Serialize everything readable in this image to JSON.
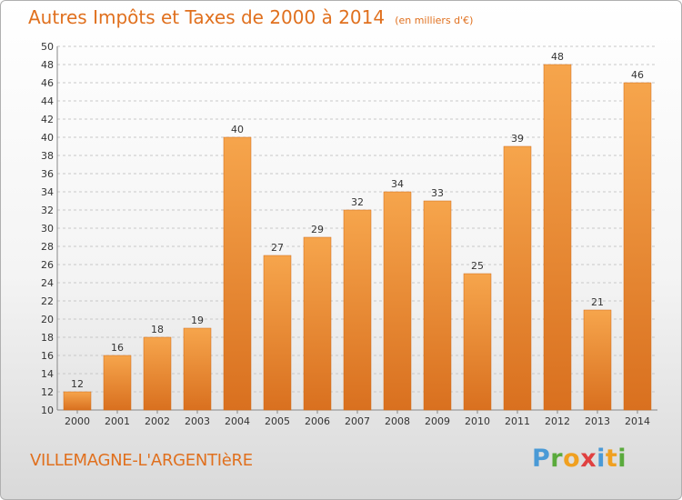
{
  "header": {
    "title": "Autres Impôts et Taxes de 2000 à 2014",
    "subtitle": "(en milliers d'€)"
  },
  "footer": {
    "commune": "VILLEMAGNE-L'ARGENTIèRE",
    "logo": {
      "letters": [
        "P",
        "r",
        "o",
        "x",
        "i",
        "t",
        "i"
      ],
      "colors": [
        "#4a9ad6",
        "#5aaa3c",
        "#f0a020",
        "#e04040",
        "#4a9ad6",
        "#f0a020",
        "#5aaa3c"
      ]
    }
  },
  "colors": {
    "bar_light": "#f6a54c",
    "bar_dark": "#d9701f",
    "bar_stroke": "#cf6a18",
    "grid": "#c8c8c8",
    "text": "#333333",
    "accent": "#e0701e"
  },
  "chart_data": {
    "type": "bar",
    "title": "Autres Impôts et Taxes de 2000 à 2014",
    "subtitle": "(en milliers d'€)",
    "categories": [
      "2000",
      "2001",
      "2002",
      "2003",
      "2004",
      "2005",
      "2006",
      "2007",
      "2008",
      "2009",
      "2010",
      "2011",
      "2012",
      "2013",
      "2014"
    ],
    "values": [
      12,
      16,
      18,
      19,
      40,
      27,
      29,
      32,
      34,
      33,
      25,
      39,
      48,
      21,
      46
    ],
    "ylim": [
      10,
      50
    ],
    "yticks": [
      10,
      12,
      14,
      16,
      18,
      20,
      22,
      24,
      26,
      28,
      30,
      32,
      34,
      36,
      38,
      40,
      42,
      44,
      46,
      48,
      50
    ],
    "grid": true,
    "data_labels": true
  }
}
